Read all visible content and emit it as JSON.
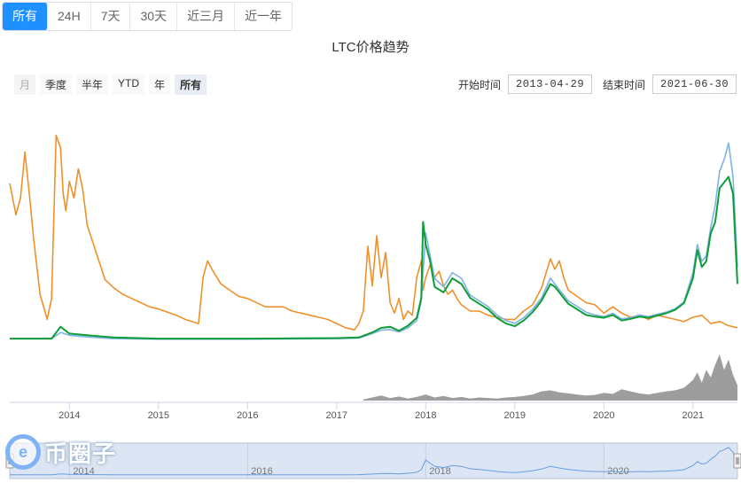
{
  "tabs": [
    "所有",
    "24H",
    "7天",
    "30天",
    "近三月",
    "近一年"
  ],
  "active_tab": 0,
  "title": "LTC价格趋势",
  "range_buttons": [
    "月",
    "季度",
    "半年",
    "YTD",
    "年",
    "所有"
  ],
  "active_range": 5,
  "start_label": "开始时间",
  "start_date": "2013-04-29",
  "end_label": "结束时间",
  "end_date": "2021-06-30",
  "watermark": {
    "logo": "e",
    "text": "币圈子"
  },
  "colors": {
    "orange": "#f0902a",
    "blue": "#7fb2e5",
    "green": "#0f9d3a",
    "volume": "#8c8c8c",
    "accent": "#1e90ff",
    "navigator": "#dce5f3"
  },
  "chart_data": {
    "type": "line",
    "title": "LTC价格趋势",
    "x_ticks": [
      "2014",
      "2015",
      "2016",
      "2017",
      "2018",
      "2019",
      "2020",
      "2021"
    ],
    "x_range": [
      2013.33,
      2021.5
    ],
    "navigator_ticks": [
      "2014",
      "2016",
      "2018",
      "2020"
    ],
    "series": [
      {
        "color": "#f0902a",
        "axis": "left-relative",
        "x": [
          2013.33,
          2013.4,
          2013.45,
          2013.5,
          2013.55,
          2013.6,
          2013.67,
          2013.75,
          2013.8,
          2013.85,
          2013.9,
          2013.93,
          2013.96,
          2014.0,
          2014.05,
          2014.1,
          2014.15,
          2014.2,
          2014.3,
          2014.4,
          2014.5,
          2014.6,
          2014.7,
          2014.8,
          2014.9,
          2015.0,
          2015.2,
          2015.3,
          2015.45,
          2015.5,
          2015.55,
          2015.6,
          2015.7,
          2015.8,
          2015.9,
          2016.0,
          2016.2,
          2016.4,
          2016.5,
          2016.6,
          2016.7,
          2016.8,
          2016.9,
          2017.0,
          2017.1,
          2017.2,
          2017.25,
          2017.3,
          2017.35,
          2017.4,
          2017.45,
          2017.5,
          2017.55,
          2017.6,
          2017.65,
          2017.7,
          2017.75,
          2017.8,
          2017.85,
          2017.9,
          2017.95,
          2017.97,
          2018.0,
          2018.05,
          2018.1,
          2018.15,
          2018.2,
          2018.25,
          2018.3,
          2018.35,
          2018.4,
          2018.5,
          2018.6,
          2018.7,
          2018.8,
          2018.9,
          2019.0,
          2019.1,
          2019.2,
          2019.3,
          2019.4,
          2019.45,
          2019.5,
          2019.55,
          2019.6,
          2019.7,
          2019.8,
          2019.9,
          2020.0,
          2020.1,
          2020.2,
          2020.3,
          2020.4,
          2020.5,
          2020.6,
          2020.7,
          2020.8,
          2020.9,
          2021.0,
          2021.1,
          2021.2,
          2021.3,
          2021.4,
          2021.5
        ],
        "y": [
          0.75,
          0.6,
          0.68,
          0.9,
          0.7,
          0.48,
          0.22,
          0.1,
          0.2,
          0.98,
          0.92,
          0.7,
          0.62,
          0.76,
          0.68,
          0.82,
          0.72,
          0.55,
          0.42,
          0.29,
          0.25,
          0.22,
          0.2,
          0.18,
          0.16,
          0.15,
          0.12,
          0.1,
          0.08,
          0.3,
          0.38,
          0.34,
          0.27,
          0.24,
          0.21,
          0.2,
          0.16,
          0.16,
          0.14,
          0.13,
          0.12,
          0.11,
          0.1,
          0.08,
          0.06,
          0.05,
          0.08,
          0.14,
          0.45,
          0.26,
          0.5,
          0.3,
          0.42,
          0.18,
          0.13,
          0.2,
          0.1,
          0.14,
          0.12,
          0.3,
          0.38,
          0.24,
          0.3,
          0.36,
          0.3,
          0.33,
          0.26,
          0.22,
          0.24,
          0.2,
          0.17,
          0.14,
          0.14,
          0.12,
          0.11,
          0.1,
          0.1,
          0.14,
          0.17,
          0.25,
          0.39,
          0.34,
          0.38,
          0.3,
          0.24,
          0.21,
          0.18,
          0.17,
          0.13,
          0.16,
          0.13,
          0.11,
          0.12,
          0.1,
          0.12,
          0.11,
          0.1,
          0.09,
          0.11,
          0.12,
          0.08,
          0.09,
          0.07,
          0.06
        ]
      },
      {
        "color": "#7fb2e5",
        "axis": "left",
        "x": [
          2013.33,
          2013.8,
          2013.9,
          2014.0,
          2014.2,
          2014.5,
          2015.0,
          2016.0,
          2017.0,
          2017.25,
          2017.4,
          2017.5,
          2017.6,
          2017.7,
          2017.8,
          2017.9,
          2017.95,
          2017.97,
          2018.0,
          2018.05,
          2018.1,
          2018.2,
          2018.3,
          2018.4,
          2018.5,
          2018.6,
          2018.7,
          2018.8,
          2018.9,
          2019.0,
          2019.1,
          2019.2,
          2019.3,
          2019.4,
          2019.45,
          2019.5,
          2019.6,
          2019.7,
          2019.8,
          2019.9,
          2020.0,
          2020.1,
          2020.2,
          2020.3,
          2020.4,
          2020.5,
          2020.6,
          2020.7,
          2020.8,
          2020.9,
          2021.0,
          2021.05,
          2021.1,
          2021.15,
          2021.2,
          2021.25,
          2021.3,
          2021.35,
          2021.4,
          2021.45,
          2021.5
        ],
        "y": [
          3,
          3,
          14,
          9,
          6,
          3,
          2,
          2,
          3,
          4,
          12,
          18,
          19,
          15,
          22,
          35,
          70,
          120,
          190,
          150,
          110,
          95,
          120,
          110,
          80,
          70,
          60,
          45,
          35,
          30,
          40,
          55,
          75,
          110,
          100,
          90,
          70,
          60,
          50,
          45,
          42,
          48,
          38,
          40,
          45,
          42,
          46,
          50,
          56,
          68,
          120,
          170,
          140,
          150,
          200,
          240,
          300,
          320,
          350,
          290,
          130
        ]
      },
      {
        "color": "#0f9d3a",
        "axis": "left",
        "x": [
          2013.33,
          2013.8,
          2013.9,
          2014.0,
          2014.2,
          2014.5,
          2015.0,
          2016.0,
          2017.0,
          2017.25,
          2017.4,
          2017.5,
          2017.6,
          2017.7,
          2017.8,
          2017.9,
          2017.95,
          2017.97,
          2018.0,
          2018.05,
          2018.1,
          2018.2,
          2018.3,
          2018.4,
          2018.5,
          2018.6,
          2018.7,
          2018.8,
          2018.9,
          2019.0,
          2019.1,
          2019.2,
          2019.3,
          2019.4,
          2019.45,
          2019.5,
          2019.6,
          2019.7,
          2019.8,
          2019.9,
          2020.0,
          2020.1,
          2020.2,
          2020.3,
          2020.4,
          2020.5,
          2020.6,
          2020.7,
          2020.8,
          2020.9,
          2021.0,
          2021.05,
          2021.1,
          2021.15,
          2021.2,
          2021.25,
          2021.3,
          2021.35,
          2021.4,
          2021.45,
          2021.5
        ],
        "y": [
          3,
          3,
          24,
          12,
          9,
          5,
          3,
          3,
          4,
          5,
          14,
          22,
          24,
          17,
          26,
          40,
          75,
          210,
          170,
          140,
          95,
          85,
          110,
          100,
          75,
          65,
          55,
          40,
          30,
          25,
          35,
          50,
          70,
          100,
          95,
          85,
          65,
          55,
          45,
          42,
          40,
          45,
          35,
          38,
          42,
          40,
          44,
          48,
          54,
          66,
          110,
          160,
          130,
          140,
          190,
          210,
          270,
          280,
          290,
          260,
          100
        ]
      }
    ],
    "volume": {
      "x": [
        2017.3,
        2017.4,
        2017.5,
        2017.6,
        2017.7,
        2017.8,
        2017.9,
        2018.0,
        2018.1,
        2018.2,
        2018.3,
        2018.4,
        2018.5,
        2018.6,
        2018.7,
        2018.8,
        2018.9,
        2019.0,
        2019.1,
        2019.2,
        2019.3,
        2019.4,
        2019.5,
        2019.6,
        2019.7,
        2019.8,
        2019.9,
        2020.0,
        2020.1,
        2020.2,
        2020.3,
        2020.4,
        2020.5,
        2020.6,
        2020.7,
        2020.8,
        2020.9,
        2021.0,
        2021.05,
        2021.1,
        2021.15,
        2021.2,
        2021.25,
        2021.3,
        2021.35,
        2021.4,
        2021.45,
        2021.5
      ],
      "y": [
        2,
        6,
        10,
        5,
        8,
        4,
        7,
        12,
        6,
        9,
        5,
        7,
        4,
        6,
        5,
        4,
        6,
        7,
        9,
        12,
        18,
        20,
        16,
        14,
        12,
        10,
        11,
        15,
        13,
        22,
        18,
        14,
        12,
        15,
        18,
        20,
        25,
        40,
        55,
        35,
        60,
        45,
        70,
        90,
        60,
        80,
        50,
        30
      ]
    }
  }
}
